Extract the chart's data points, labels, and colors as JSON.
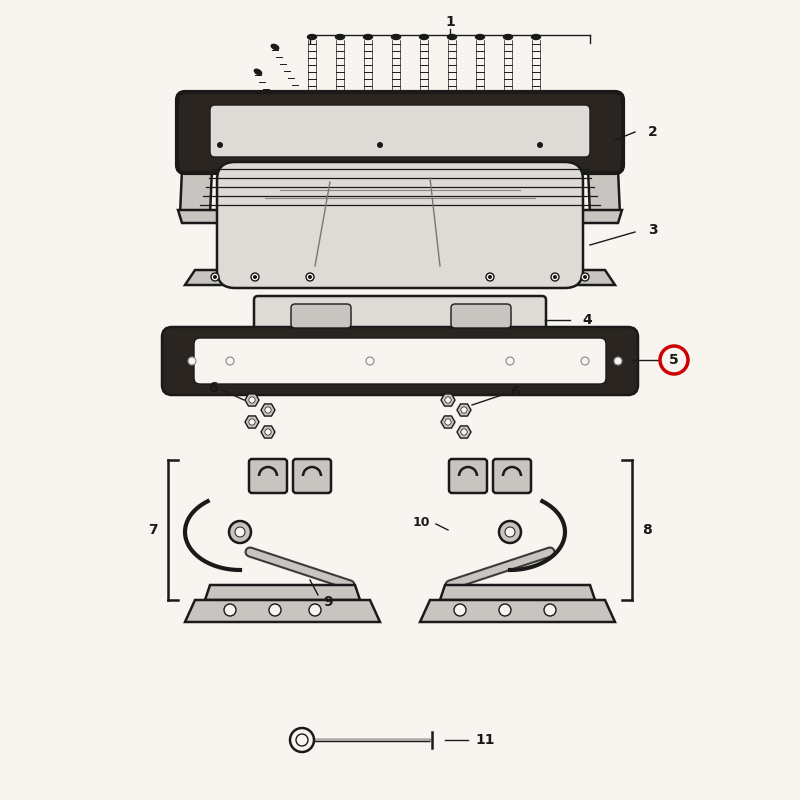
{
  "bg_color": "#f8f5f0",
  "line_color": "#1a1a1a",
  "label_color": "#1a1a1a",
  "red_circle_color": "#cc0000",
  "fill_light": "#dedad6",
  "fill_dark": "#2a2520",
  "fill_mid": "#c8c5c0"
}
